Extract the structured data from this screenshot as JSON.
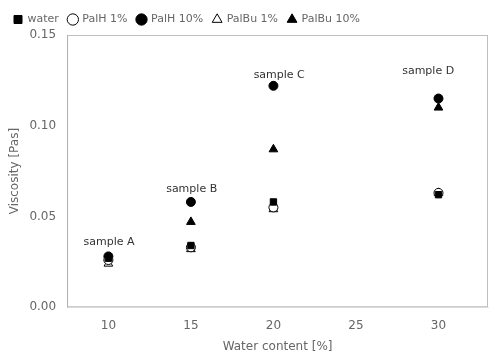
{
  "chart_data": {
    "type": "scatter",
    "x_label": "Water content [%]",
    "y_label": "Viscosity [Pas]",
    "xlim": [
      7.5,
      33
    ],
    "ylim": [
      0.0,
      0.15
    ],
    "xticks": [
      10,
      15,
      20,
      25,
      30
    ],
    "yticks": [
      {
        "value": 0.0,
        "label": "0.00"
      },
      0.05,
      {
        "value": 0.1,
        "label": "0.10"
      },
      0.15
    ],
    "grid": false,
    "legend": "upper left",
    "series": [
      {
        "name": "water",
        "color": "black",
        "marker": "filled_square",
        "x": [
          10,
          15,
          20,
          30
        ],
        "values": [
          0.027,
          0.034,
          0.058,
          0.062
        ]
      },
      {
        "name": "PalH 1%",
        "color": "black",
        "marker": "open_circle",
        "x": [
          10,
          15,
          20,
          30
        ],
        "values": [
          0.026,
          0.033,
          0.055,
          0.063
        ]
      },
      {
        "name": "PalH 10%",
        "color": "black",
        "marker": "filled_circle",
        "x": [
          10,
          15,
          20,
          30
        ],
        "values": [
          0.028,
          0.058,
          0.122,
          0.115
        ]
      },
      {
        "name": "PalBu 1%",
        "color": "black",
        "marker": "open_triangle",
        "x": [
          10,
          15,
          20,
          30
        ],
        "values": [
          0.024,
          0.032,
          0.054,
          0.063
        ]
      },
      {
        "name": "PalBu 10%",
        "color": "black",
        "marker": "filled_triangle",
        "x": [
          10,
          15,
          20,
          30
        ],
        "values": [
          0.027,
          0.047,
          0.087,
          0.11
        ]
      }
    ],
    "annotations": [
      {
        "text": "sample A",
        "x": 8.5,
        "y": 0.033
      },
      {
        "text": "sample B",
        "x": 13.5,
        "y": 0.062
      },
      {
        "text": "sample C",
        "x": 18.8,
        "y": 0.125
      },
      {
        "text": "sample D",
        "x": 27.8,
        "y": 0.127
      }
    ]
  }
}
